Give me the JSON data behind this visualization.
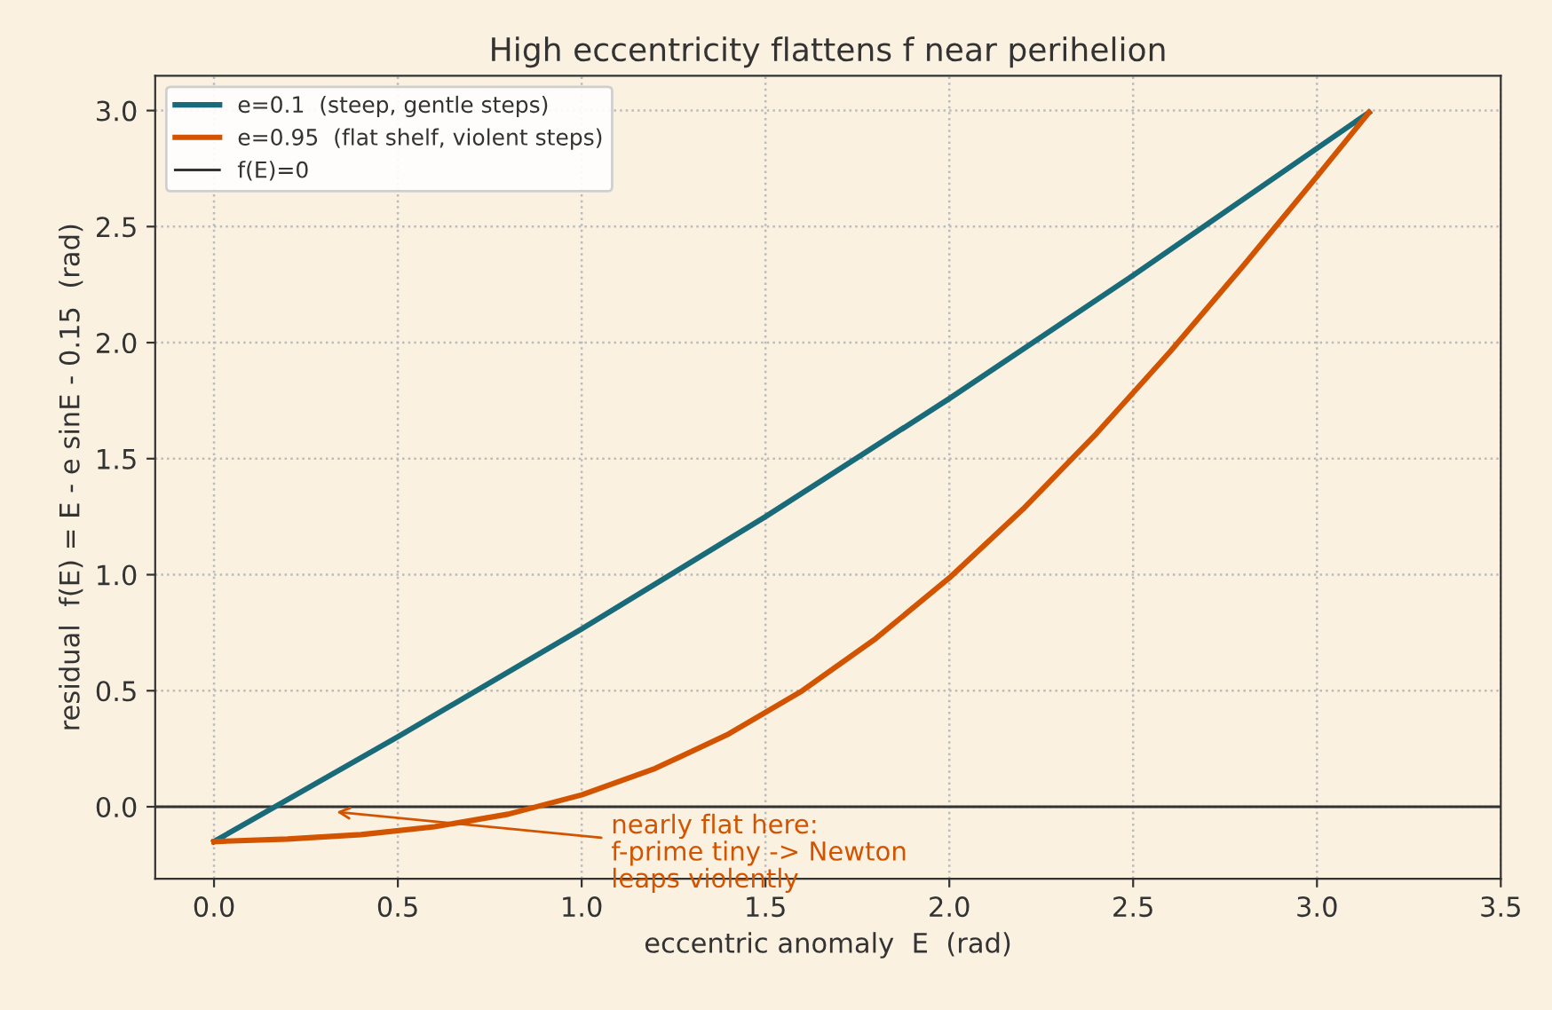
{
  "chart_data": {
    "type": "line",
    "title": "High eccentricity flattens f near perihelion",
    "xlabel": "eccentric anomaly  E  (rad)",
    "ylabel": "residual  f(E) = E - e sinE - 0.15  (rad)",
    "series": [
      {
        "name": "e=0.1  (steep, gentle steps)",
        "color": "#1a6b7a",
        "x": [
          0,
          0.5,
          1.0,
          1.5,
          2.0,
          2.5,
          3.1416
        ],
        "values": [
          -0.15,
          0.302,
          0.766,
          1.25,
          1.759,
          2.29,
          2.992
        ]
      },
      {
        "name": "e=0.95  (flat shelf, violent steps)",
        "color": "#d35400",
        "x": [
          0,
          0.2,
          0.4,
          0.6,
          0.8,
          1.0,
          1.2,
          1.4,
          1.6,
          1.8,
          2.0,
          2.2,
          2.4,
          2.6,
          2.8,
          3.0,
          3.1416
        ],
        "values": [
          -0.15,
          -0.139,
          -0.12,
          -0.086,
          -0.032,
          0.051,
          0.165,
          0.314,
          0.5,
          0.725,
          0.986,
          1.282,
          1.608,
          1.96,
          2.332,
          2.716,
          2.992
        ]
      }
    ],
    "ref_lines": [
      {
        "axis": "y",
        "value": 0,
        "label": "f(E)=0",
        "color": "#333333",
        "line_style": "solid"
      }
    ],
    "annotations": [
      {
        "text": "nearly flat here:\nf-prime tiny -> Newton\nleaps violently",
        "x": 0.32,
        "y": -0.02
      }
    ],
    "xlim": [
      -0.16,
      3.5
    ],
    "xticks": [
      {
        "value": 0,
        "label": "0.0"
      },
      0.5,
      {
        "value": 1,
        "label": "1.0"
      },
      1.5,
      {
        "value": 2,
        "label": "2.0"
      },
      2.5,
      {
        "value": 3,
        "label": "3.0"
      },
      3.5
    ],
    "ylim": [
      -0.31,
      3.15
    ],
    "yticks": [
      {
        "value": 0,
        "label": "0.0"
      },
      0.5,
      {
        "value": 1,
        "label": "1.0"
      },
      1.5,
      {
        "value": 2,
        "label": "2.0"
      },
      2.5,
      {
        "value": 3,
        "label": "3.0"
      }
    ],
    "grid": true,
    "legend": "top left",
    "line_style": "solid",
    "marker": "none"
  }
}
